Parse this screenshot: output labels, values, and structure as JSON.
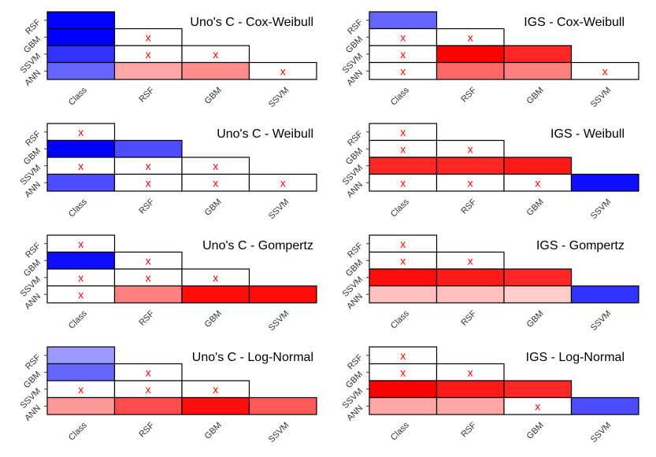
{
  "colors": {
    "positive": "#0000ff",
    "negative": "#ff0000",
    "neutral": "#ffffff",
    "border": "#000000",
    "mark": "#ff0000"
  },
  "x_mark_symbol": "x",
  "chart_data": [
    {
      "type": "heatmap",
      "title": "Uno's C - Cox-Weibull",
      "rows": [
        "RSF",
        "GBM",
        "SSVM",
        "ANN"
      ],
      "columns": [
        "Class",
        "RSF",
        "GBM",
        "SSVM"
      ],
      "values": [
        [
          1.0
        ],
        [
          1.0,
          null
        ],
        [
          0.8,
          null,
          null
        ],
        [
          0.6,
          -0.35,
          -0.45,
          null
        ]
      ]
    },
    {
      "type": "heatmap",
      "title": "IGS - Cox-Weibull",
      "rows": [
        "RSF",
        "GBM",
        "SSVM",
        "ANN"
      ],
      "columns": [
        "Class",
        "RSF",
        "GBM",
        "SSVM"
      ],
      "values": [
        [
          0.6
        ],
        [
          null,
          null
        ],
        [
          null,
          -1.0,
          -0.85
        ],
        [
          null,
          -0.6,
          -0.5,
          null
        ]
      ]
    },
    {
      "type": "heatmap",
      "title": "Uno's C - Weibull",
      "rows": [
        "RSF",
        "GBM",
        "SSVM",
        "ANN"
      ],
      "columns": [
        "Class",
        "RSF",
        "GBM",
        "SSVM"
      ],
      "values": [
        [
          null
        ],
        [
          1.0,
          0.7
        ],
        [
          null,
          null,
          null
        ],
        [
          0.7,
          null,
          null,
          null
        ]
      ]
    },
    {
      "type": "heatmap",
      "title": "IGS - Weibull",
      "rows": [
        "RSF",
        "GBM",
        "SSVM",
        "ANN"
      ],
      "columns": [
        "Class",
        "RSF",
        "GBM",
        "SSVM"
      ],
      "values": [
        [
          null
        ],
        [
          null,
          null
        ],
        [
          -0.85,
          -0.85,
          -0.9
        ],
        [
          null,
          null,
          null,
          0.95
        ]
      ]
    },
    {
      "type": "heatmap",
      "title": "Uno's C - Gompertz",
      "rows": [
        "RSF",
        "GBM",
        "SSVM",
        "ANN"
      ],
      "columns": [
        "Class",
        "RSF",
        "GBM",
        "SSVM"
      ],
      "values": [
        [
          null
        ],
        [
          0.95,
          null
        ],
        [
          null,
          null,
          null
        ],
        [
          null,
          -0.5,
          -0.95,
          -0.95
        ]
      ]
    },
    {
      "type": "heatmap",
      "title": "IGS - Gompertz",
      "rows": [
        "RSF",
        "GBM",
        "SSVM",
        "ANN"
      ],
      "columns": [
        "Class",
        "RSF",
        "GBM",
        "SSVM"
      ],
      "values": [
        [
          null
        ],
        [
          null,
          null
        ],
        [
          -0.95,
          -0.9,
          -0.85
        ],
        [
          -0.25,
          -0.25,
          -0.2,
          0.8
        ]
      ]
    },
    {
      "type": "heatmap",
      "title": "Uno's C - Log-Normal",
      "rows": [
        "RSF",
        "GBM",
        "SSVM",
        "ANN"
      ],
      "columns": [
        "Class",
        "RSF",
        "GBM",
        "SSVM"
      ],
      "values": [
        [
          0.4
        ],
        [
          0.6,
          null
        ],
        [
          null,
          null,
          null
        ],
        [
          -0.4,
          -0.7,
          -0.95,
          -0.65
        ]
      ]
    },
    {
      "type": "heatmap",
      "title": "IGS - Log-Normal",
      "rows": [
        "RSF",
        "GBM",
        "SSVM",
        "ANN"
      ],
      "columns": [
        "Class",
        "RSF",
        "GBM",
        "SSVM"
      ],
      "values": [
        [
          null
        ],
        [
          null,
          null
        ],
        [
          -1.0,
          -0.9,
          -0.85
        ],
        [
          -0.35,
          -0.35,
          null,
          0.7
        ]
      ]
    }
  ]
}
